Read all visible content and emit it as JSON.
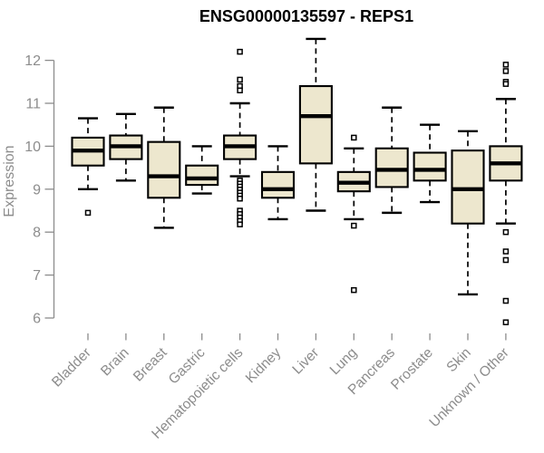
{
  "title": "ENSG00000135597 - REPS1",
  "chart_data": {
    "type": "boxplot",
    "title": "ENSG00000135597 - REPS1",
    "xlabel": "",
    "ylabel": "Expression",
    "ylim": [
      6,
      12
    ],
    "yticks": [
      6,
      7,
      8,
      9,
      10,
      11,
      12
    ],
    "grid": false,
    "legend": "none",
    "box_fill": "#EDE7CE",
    "box_stroke": "#000000",
    "axis_color": "#8C8C8C",
    "title_color": "#000000",
    "categories": [
      "Bladder",
      "Brain",
      "Breast",
      "Gastric",
      "Hematopoietic cells",
      "Kidney",
      "Liver",
      "Lung",
      "Pancreas",
      "Prostate",
      "Skin",
      "Unknown / Other"
    ],
    "series": [
      {
        "category": "Bladder",
        "min": 9.0,
        "q1": 9.55,
        "median": 9.9,
        "q3": 10.2,
        "max": 10.65,
        "outliers": [
          8.45
        ]
      },
      {
        "category": "Brain",
        "min": 9.2,
        "q1": 9.7,
        "median": 10.0,
        "q3": 10.25,
        "max": 10.75,
        "outliers": []
      },
      {
        "category": "Breast",
        "min": 8.1,
        "q1": 8.8,
        "median": 9.3,
        "q3": 10.1,
        "max": 10.9,
        "outliers": []
      },
      {
        "category": "Gastric",
        "min": 8.9,
        "q1": 9.1,
        "median": 9.25,
        "q3": 9.55,
        "max": 10.0,
        "outliers": []
      },
      {
        "category": "Hematopoietic cells",
        "min": 9.3,
        "q1": 9.7,
        "median": 10.0,
        "q3": 10.25,
        "max": 11.0,
        "outliers": [
          12.2,
          11.55,
          11.4,
          11.3,
          9.2,
          9.13,
          9.06,
          8.99,
          8.92,
          8.85,
          8.78,
          8.5,
          8.42,
          8.34,
          8.26,
          8.18
        ]
      },
      {
        "category": "Kidney",
        "min": 8.3,
        "q1": 8.8,
        "median": 9.0,
        "q3": 9.4,
        "max": 10.0,
        "outliers": []
      },
      {
        "category": "Liver",
        "min": 8.5,
        "q1": 9.6,
        "median": 10.7,
        "q3": 11.4,
        "max": 12.5,
        "outliers": []
      },
      {
        "category": "Lung",
        "min": 8.3,
        "q1": 8.95,
        "median": 9.15,
        "q3": 9.4,
        "max": 9.95,
        "outliers": [
          10.2,
          8.15,
          6.65
        ]
      },
      {
        "category": "Pancreas",
        "min": 8.45,
        "q1": 9.05,
        "median": 9.45,
        "q3": 9.95,
        "max": 10.9,
        "outliers": []
      },
      {
        "category": "Prostate",
        "min": 8.7,
        "q1": 9.2,
        "median": 9.45,
        "q3": 9.85,
        "max": 10.5,
        "outliers": []
      },
      {
        "category": "Skin",
        "min": 6.55,
        "q1": 8.2,
        "median": 9.0,
        "q3": 9.9,
        "max": 10.35,
        "outliers": []
      },
      {
        "category": "Unknown / Other",
        "min": 8.2,
        "q1": 9.2,
        "median": 9.6,
        "q3": 10.0,
        "max": 11.1,
        "outliers": [
          11.9,
          11.75,
          11.5,
          11.45,
          8.0,
          7.55,
          7.35,
          6.4,
          5.9
        ]
      }
    ]
  }
}
